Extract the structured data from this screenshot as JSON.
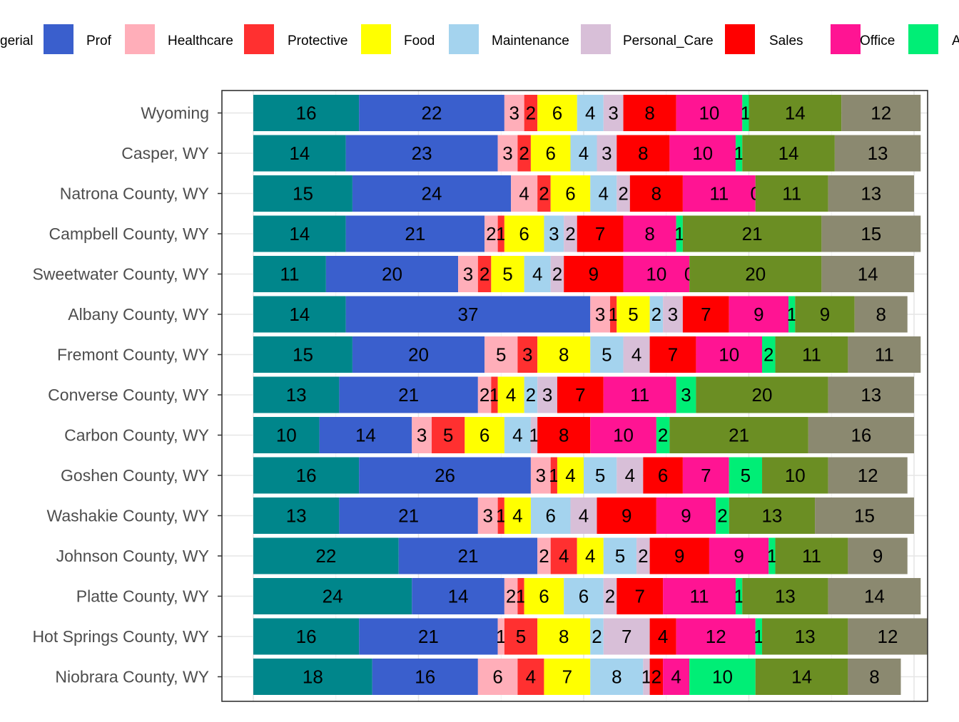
{
  "chart_data": {
    "type": "bar",
    "orientation": "horizontal",
    "stacked": true,
    "title": "",
    "xlabel": "",
    "ylabel": "",
    "grid": true,
    "legend_position": "top",
    "categories": [
      "Wyoming",
      "Casper, WY",
      "Natrona County, WY",
      "Campbell County, WY",
      "Sweetwater County, WY",
      "Albany County, WY",
      "Fremont County, WY",
      "Converse County, WY",
      "Carbon County, WY",
      "Goshen County, WY",
      "Washakie County, WY",
      "Johnson County, WY",
      "Platte County, WY",
      "Hot Springs County, WY",
      "Niobrara County, WY"
    ],
    "legend_labels": [
      "gerial",
      "Prof",
      "Healthcare",
      "Protective",
      "Food",
      "Maintenance",
      "Personal_Care",
      "Sales",
      "Office",
      "A"
    ],
    "series": [
      {
        "name": "Managerial",
        "color": "#00868B",
        "values": [
          16,
          14,
          15,
          14,
          11,
          14,
          15,
          13,
          10,
          16,
          13,
          22,
          24,
          16,
          18
        ]
      },
      {
        "name": "Prof",
        "color": "#3A5FCD",
        "values": [
          22,
          23,
          24,
          21,
          20,
          37,
          20,
          21,
          14,
          26,
          21,
          21,
          14,
          21,
          16
        ]
      },
      {
        "name": "Healthcare",
        "color": "#FFAEB9",
        "values": [
          3,
          3,
          4,
          2,
          3,
          3,
          5,
          2,
          3,
          3,
          3,
          2,
          2,
          1,
          6
        ]
      },
      {
        "name": "Protective",
        "color": "#FF3030",
        "values": [
          2,
          2,
          2,
          1,
          2,
          1,
          3,
          1,
          5,
          1,
          1,
          4,
          1,
          5,
          4
        ]
      },
      {
        "name": "Food",
        "color": "#FFFF00",
        "values": [
          6,
          6,
          6,
          6,
          5,
          5,
          8,
          4,
          6,
          4,
          4,
          4,
          6,
          8,
          7
        ]
      },
      {
        "name": "Maintenance",
        "color": "#A4D3EE",
        "values": [
          4,
          4,
          4,
          3,
          4,
          2,
          5,
          2,
          4,
          5,
          6,
          5,
          6,
          2,
          8
        ]
      },
      {
        "name": "Personal_Care",
        "color": "#D8BFD8",
        "values": [
          3,
          3,
          2,
          2,
          2,
          3,
          4,
          3,
          1,
          4,
          4,
          2,
          2,
          7,
          1
        ]
      },
      {
        "name": "Sales",
        "color": "#FF0000",
        "values": [
          8,
          8,
          8,
          7,
          9,
          7,
          7,
          7,
          8,
          6,
          9,
          9,
          7,
          4,
          2
        ]
      },
      {
        "name": "Office",
        "color": "#FF1493",
        "values": [
          10,
          10,
          11,
          8,
          10,
          9,
          10,
          11,
          10,
          7,
          9,
          9,
          11,
          12,
          4
        ]
      },
      {
        "name": "A",
        "color": "#00EE76",
        "values": [
          1,
          1,
          0,
          1,
          0,
          1,
          2,
          3,
          2,
          5,
          2,
          1,
          1,
          1,
          10
        ]
      },
      {
        "color": "#6B8E23",
        "values": [
          14,
          14,
          11,
          21,
          20,
          9,
          11,
          20,
          21,
          10,
          13,
          11,
          13,
          13,
          14
        ]
      },
      {
        "color": "#8B8970",
        "values": [
          12,
          13,
          13,
          15,
          14,
          8,
          11,
          13,
          16,
          12,
          15,
          9,
          14,
          12,
          8
        ]
      }
    ]
  }
}
